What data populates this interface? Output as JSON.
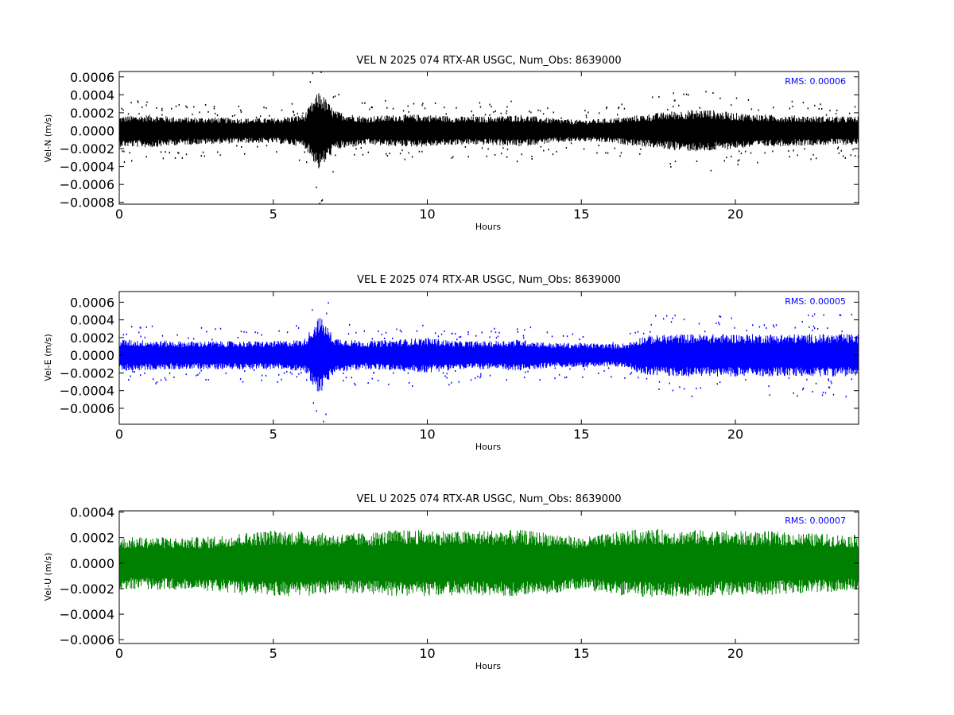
{
  "chart_data": [
    {
      "type": "scatter",
      "title": "VEL N 2025 074 RTX-AR  USGC, Num_Obs: 8639000",
      "xlabel": "Hours",
      "ylabel": "Vel-N (m/s)",
      "xlim": [
        0,
        24
      ],
      "ylim": [
        -0.00082,
        0.00066
      ],
      "x_ticks": [
        0,
        5,
        10,
        15,
        20
      ],
      "x_tick_labels": [
        "0",
        "5",
        "10",
        "15",
        "20"
      ],
      "y_ticks": [
        0.0006,
        0.0004,
        0.0002,
        0.0,
        -0.0002,
        -0.0004,
        -0.0006,
        -0.0008
      ],
      "y_tick_labels": [
        "0.0006",
        "0.0004",
        "0.0002",
        "0.0000",
        "−0.0002",
        "−0.0004",
        "−0.0006",
        "−0.0008"
      ],
      "color": "#000000",
      "annotation": "RMS:  0.00006",
      "series": [
        {
          "x": [
            0,
            1,
            2,
            3,
            4,
            5,
            6,
            6.5,
            7,
            8,
            9,
            10,
            11,
            12,
            13,
            14,
            15,
            16,
            17,
            18,
            19,
            20,
            21,
            22,
            23,
            24
          ],
          "high": [
            0.00016,
            0.00018,
            0.00015,
            0.00015,
            0.00014,
            0.00014,
            0.00018,
            0.00045,
            0.00022,
            0.00016,
            0.00018,
            0.00018,
            0.00016,
            0.00016,
            0.00018,
            0.00014,
            0.00012,
            0.00014,
            0.00018,
            0.00022,
            0.00024,
            0.0002,
            0.00018,
            0.00017,
            0.00016,
            0.00016
          ],
          "low": [
            -0.00018,
            -0.00019,
            -0.00016,
            -0.00015,
            -0.00014,
            -0.00014,
            -0.00018,
            -0.00045,
            -0.00022,
            -0.00016,
            -0.00018,
            -0.00018,
            -0.00016,
            -0.00016,
            -0.00018,
            -0.00014,
            -0.00012,
            -0.00014,
            -0.00018,
            -0.00022,
            -0.00024,
            -0.0002,
            -0.00018,
            -0.00017,
            -0.00016,
            -0.00016
          ]
        }
      ]
    },
    {
      "type": "scatter",
      "title": "VEL E 2025 074 RTX-AR  USGC, Num_Obs: 8639000",
      "xlabel": "Hours",
      "ylabel": "Vel-E (m/s)",
      "xlim": [
        0,
        24
      ],
      "ylim": [
        -0.00078,
        0.00072
      ],
      "x_ticks": [
        0,
        5,
        10,
        15,
        20
      ],
      "x_tick_labels": [
        "0",
        "5",
        "10",
        "15",
        "20"
      ],
      "y_ticks": [
        0.0006,
        0.0004,
        0.0002,
        0.0,
        -0.0002,
        -0.0004,
        -0.0006
      ],
      "y_tick_labels": [
        "0.0006",
        "0.0004",
        "0.0002",
        "0.0000",
        "−0.0002",
        "−0.0004",
        "−0.0006"
      ],
      "color": "#0000ff",
      "annotation": "RMS:  0.00005",
      "series": [
        {
          "x": [
            0,
            1,
            2,
            3,
            4,
            5,
            6,
            6.5,
            7,
            8,
            9,
            10,
            11,
            12,
            13,
            14,
            15,
            16,
            16.5,
            17,
            18,
            19,
            20,
            21,
            22,
            23,
            24
          ],
          "high": [
            0.00018,
            0.00017,
            0.00016,
            0.00016,
            0.00016,
            0.00016,
            0.00018,
            0.00045,
            0.0002,
            0.00016,
            0.00018,
            0.0002,
            0.00016,
            0.00016,
            0.00018,
            0.00014,
            0.00014,
            0.00013,
            0.00014,
            0.00022,
            0.00024,
            0.00024,
            0.00024,
            0.00024,
            0.00024,
            0.00024,
            0.00024
          ],
          "low": [
            -0.00018,
            -0.00017,
            -0.00016,
            -0.00016,
            -0.00016,
            -0.00016,
            -0.00018,
            -0.00045,
            -0.0002,
            -0.00016,
            -0.00018,
            -0.0002,
            -0.00016,
            -0.00016,
            -0.00018,
            -0.00014,
            -0.00014,
            -0.00013,
            -0.00014,
            -0.00022,
            -0.00024,
            -0.00024,
            -0.00024,
            -0.00024,
            -0.00024,
            -0.00024,
            -0.00024
          ]
        }
      ]
    },
    {
      "type": "line",
      "title": "VEL U 2025 074 RTX-AR  USGC, Num_Obs: 8639000",
      "xlabel": "Hours",
      "ylabel": "Vel-U (m/s)",
      "xlim": [
        0,
        24
      ],
      "ylim": [
        -0.00063,
        0.00041
      ],
      "x_ticks": [
        0,
        5,
        10,
        15,
        20
      ],
      "x_tick_labels": [
        "0",
        "5",
        "10",
        "15",
        "20"
      ],
      "y_ticks": [
        0.0004,
        0.0002,
        0.0,
        -0.0002,
        -0.0004,
        -0.0006
      ],
      "y_tick_labels": [
        "0.0004",
        "0.0002",
        "0.0000",
        "−0.0002",
        "−0.0004",
        "−0.0006"
      ],
      "color": "#008000",
      "annotation": "RMS:  0.00007",
      "series": [
        {
          "x": [
            0,
            1,
            2,
            3,
            4,
            5,
            6,
            7,
            8,
            9,
            10,
            11,
            12,
            13,
            14,
            15,
            16,
            17,
            18,
            19,
            20,
            21,
            22,
            23,
            24
          ],
          "high": [
            0.0002,
            0.00021,
            0.0002,
            0.00021,
            0.00024,
            0.00026,
            0.00025,
            0.00023,
            0.00024,
            0.00026,
            0.00026,
            0.00025,
            0.00026,
            0.00026,
            0.00024,
            0.0002,
            0.00024,
            0.00027,
            0.00026,
            0.00026,
            0.00025,
            0.00025,
            0.00024,
            0.00023,
            0.00022
          ],
          "low": [
            -0.0002,
            -0.00021,
            -0.00021,
            -0.00022,
            -0.00025,
            -0.00026,
            -0.00026,
            -0.00024,
            -0.00024,
            -0.00026,
            -0.00026,
            -0.00025,
            -0.00026,
            -0.00026,
            -0.00024,
            -0.0002,
            -0.00025,
            -0.00027,
            -0.00026,
            -0.00026,
            -0.00025,
            -0.00025,
            -0.00024,
            -0.00023,
            -0.00022
          ]
        }
      ]
    }
  ]
}
